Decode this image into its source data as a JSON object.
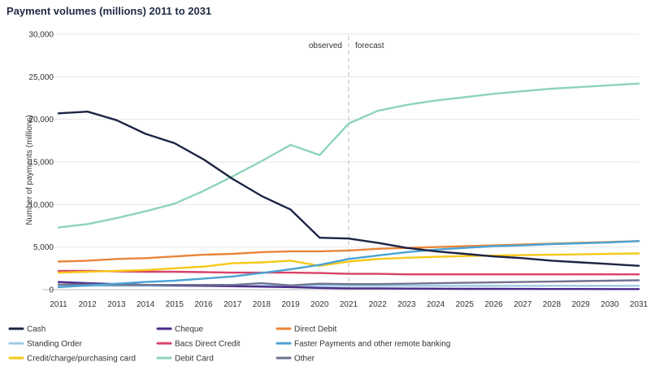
{
  "chart_data": {
    "type": "line",
    "title": "Payment volumes (millions) 2011 to 2031",
    "xlabel": "",
    "ylabel": "Number of payments (millions)",
    "ylim": [
      0,
      30000
    ],
    "yticks": [
      0,
      5000,
      10000,
      15000,
      20000,
      25000,
      30000
    ],
    "ytick_labels": [
      "0",
      "5,000",
      "10,000",
      "15,000",
      "20,000",
      "25,000",
      "30,000"
    ],
    "grid": "horizontal",
    "legend_position": "bottom",
    "annotations": {
      "divider_year": 2021,
      "left": "observed",
      "right": "forecast"
    },
    "x": [
      2011,
      2012,
      2013,
      2014,
      2015,
      2016,
      2017,
      2018,
      2019,
      2020,
      2021,
      2022,
      2023,
      2024,
      2025,
      2026,
      2027,
      2028,
      2029,
      2030,
      2031
    ],
    "series": [
      {
        "name": "Cash",
        "color": "#1d2445",
        "values": [
          20700,
          20900,
          19900,
          18300,
          17200,
          15300,
          13000,
          11000,
          9400,
          6100,
          6000,
          5500,
          4900,
          4500,
          4200,
          3900,
          3700,
          3400,
          3200,
          3000,
          2800
        ]
      },
      {
        "name": "Cheque",
        "color": "#4b2a8a",
        "values": [
          900,
          750,
          650,
          550,
          500,
          450,
          400,
          350,
          300,
          200,
          150,
          150,
          120,
          110,
          100,
          100,
          90,
          80,
          80,
          70,
          70
        ]
      },
      {
        "name": "Direct Debit",
        "color": "#e9853a",
        "values": [
          3300,
          3400,
          3600,
          3700,
          3900,
          4100,
          4200,
          4400,
          4500,
          4500,
          4600,
          4800,
          4900,
          5000,
          5100,
          5200,
          5300,
          5400,
          5500,
          5600,
          5700
        ]
      },
      {
        "name": "Standing Order",
        "color": "#9ec9e4",
        "values": [
          400,
          450,
          450,
          450,
          450,
          450,
          450,
          450,
          450,
          450,
          450,
          450,
          450,
          450,
          450,
          450,
          450,
          450,
          450,
          450,
          450
        ]
      },
      {
        "name": "Bacs Direct Credit",
        "color": "#d9426a",
        "values": [
          2200,
          2200,
          2150,
          2100,
          2100,
          2050,
          2000,
          2000,
          2000,
          1950,
          1850,
          1850,
          1800,
          1800,
          1800,
          1800,
          1800,
          1800,
          1800,
          1800,
          1800
        ]
      },
      {
        "name": "Faster Payments and other remote banking",
        "color": "#4ba3d3",
        "values": [
          300,
          500,
          700,
          900,
          1050,
          1300,
          1550,
          1950,
          2400,
          2900,
          3600,
          4000,
          4400,
          4700,
          4900,
          5100,
          5200,
          5350,
          5450,
          5550,
          5700
        ]
      },
      {
        "name": "Credit/charge/purchasing card",
        "color": "#f5c818",
        "values": [
          2000,
          2100,
          2200,
          2300,
          2500,
          2700,
          3100,
          3200,
          3400,
          2800,
          3300,
          3600,
          3750,
          3850,
          3950,
          4000,
          4050,
          4100,
          4150,
          4200,
          4250
        ]
      },
      {
        "name": "Debit Card",
        "color": "#8ed3bd",
        "values": [
          7300,
          7700,
          8400,
          9200,
          10100,
          11600,
          13300,
          15100,
          17000,
          15800,
          19500,
          21000,
          21700,
          22200,
          22600,
          23000,
          23300,
          23600,
          23800,
          24000,
          24200
        ]
      },
      {
        "name": "Other",
        "color": "#6f7390",
        "values": [
          600,
          600,
          550,
          550,
          550,
          550,
          550,
          750,
          500,
          700,
          650,
          650,
          700,
          750,
          800,
          850,
          900,
          950,
          1000,
          1050,
          1100
        ]
      }
    ]
  }
}
